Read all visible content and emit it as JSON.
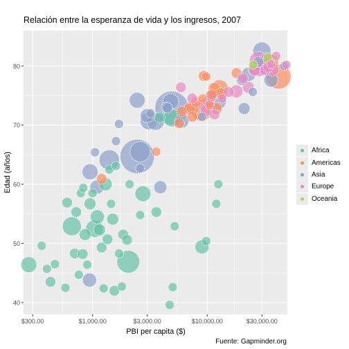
{
  "chart_data": {
    "type": "scatter",
    "title": "Relación entre la esperanza de vida y los ingresos, 2007",
    "xlabel": "PBI per capita ($)",
    "ylabel": "Edad (años)",
    "caption": "Fuente: Gapminder.org",
    "x_scale": "log10",
    "xlim": [
      250,
      50000
    ],
    "ylim": [
      38,
      86
    ],
    "x_ticks": [
      300,
      1000,
      3000,
      10000,
      30000
    ],
    "x_tick_labels": [
      "$300.00",
      "$1,000.00",
      "$3,000.00",
      "$10,000.00",
      "$30,000.00"
    ],
    "y_ticks": [
      40,
      50,
      60,
      70,
      80
    ],
    "y_tick_labels": [
      "40",
      "50",
      "60",
      "70",
      "80"
    ],
    "grid": true,
    "legend_position": "right",
    "legend": [
      {
        "name": "Africa",
        "color": "#66c2a5"
      },
      {
        "name": "Americas",
        "color": "#fc8d62"
      },
      {
        "name": "Asia",
        "color": "#8da0cb"
      },
      {
        "name": "Europe",
        "color": "#e78ac3"
      },
      {
        "name": "Oceania",
        "color": "#a6d854"
      }
    ],
    "size_variable": "population (millions)",
    "series": [
      {
        "name": "Africa",
        "color": "#66c2a5",
        "points": [
          {
            "x": 278,
            "y": 46.4,
            "size": 8
          },
          {
            "x": 360,
            "y": 49.6,
            "size": 2
          },
          {
            "x": 400,
            "y": 45.7,
            "size": 2
          },
          {
            "x": 430,
            "y": 43.5,
            "size": 3
          },
          {
            "x": 470,
            "y": 46.5,
            "size": 2
          },
          {
            "x": 580,
            "y": 42.5,
            "size": 2
          },
          {
            "x": 600,
            "y": 56.9,
            "size": 3
          },
          {
            "x": 660,
            "y": 52.9,
            "size": 12
          },
          {
            "x": 700,
            "y": 48.3,
            "size": 3
          },
          {
            "x": 720,
            "y": 55.3,
            "size": 3
          },
          {
            "x": 760,
            "y": 44.7,
            "size": 2
          },
          {
            "x": 790,
            "y": 58.5,
            "size": 2
          },
          {
            "x": 820,
            "y": 48.2,
            "size": 3
          },
          {
            "x": 830,
            "y": 59.4,
            "size": 2
          },
          {
            "x": 860,
            "y": 51.5,
            "size": 4
          },
          {
            "x": 900,
            "y": 46.4,
            "size": 2
          },
          {
            "x": 950,
            "y": 56.7,
            "size": 4
          },
          {
            "x": 1000,
            "y": 58.5,
            "size": 2
          },
          {
            "x": 1040,
            "y": 52.5,
            "size": 10
          },
          {
            "x": 1100,
            "y": 54.5,
            "size": 6
          },
          {
            "x": 1150,
            "y": 52.3,
            "size": 4
          },
          {
            "x": 1200,
            "y": 49.3,
            "size": 3
          },
          {
            "x": 1250,
            "y": 42.4,
            "size": 2
          },
          {
            "x": 1300,
            "y": 60.0,
            "size": 5
          },
          {
            "x": 1350,
            "y": 50.7,
            "size": 3
          },
          {
            "x": 1400,
            "y": 62.5,
            "size": 2
          },
          {
            "x": 1450,
            "y": 56.7,
            "size": 2
          },
          {
            "x": 1500,
            "y": 54.1,
            "size": 4
          },
          {
            "x": 1550,
            "y": 42.0,
            "size": 3
          },
          {
            "x": 1600,
            "y": 63.1,
            "size": 2
          },
          {
            "x": 1700,
            "y": 48.3,
            "size": 2
          },
          {
            "x": 1800,
            "y": 42.7,
            "size": 2
          },
          {
            "x": 1850,
            "y": 51.5,
            "size": 3
          },
          {
            "x": 2000,
            "y": 50.6,
            "size": 3
          },
          {
            "x": 2050,
            "y": 46.9,
            "size": 18
          },
          {
            "x": 2100,
            "y": 60.0,
            "size": 2
          },
          {
            "x": 2600,
            "y": 54.8,
            "size": 2
          },
          {
            "x": 2750,
            "y": 58.4,
            "size": 8
          },
          {
            "x": 3600,
            "y": 55.3,
            "size": 3
          },
          {
            "x": 3850,
            "y": 71.3,
            "size": 3
          },
          {
            "x": 4700,
            "y": 39.6,
            "size": 2
          },
          {
            "x": 4900,
            "y": 71.2,
            "size": 10
          },
          {
            "x": 5000,
            "y": 42.6,
            "size": 2
          },
          {
            "x": 5200,
            "y": 52.9,
            "size": 2
          },
          {
            "x": 9000,
            "y": 49.4,
            "size": 6
          },
          {
            "x": 9800,
            "y": 50.4,
            "size": 2
          },
          {
            "x": 12000,
            "y": 56.7,
            "size": 2
          },
          {
            "x": 12500,
            "y": 60.0,
            "size": 2
          }
        ]
      },
      {
        "name": "Americas",
        "color": "#fc8d62",
        "points": [
          {
            "x": 1200,
            "y": 60.9,
            "size": 3
          },
          {
            "x": 3600,
            "y": 65.5,
            "size": 2
          },
          {
            "x": 5700,
            "y": 70.3,
            "size": 3
          },
          {
            "x": 6000,
            "y": 72.3,
            "size": 3
          },
          {
            "x": 7000,
            "y": 72.8,
            "size": 4
          },
          {
            "x": 7400,
            "y": 71.4,
            "size": 3
          },
          {
            "x": 7500,
            "y": 72.9,
            "size": 5
          },
          {
            "x": 8000,
            "y": 73.9,
            "size": 3
          },
          {
            "x": 8900,
            "y": 72.4,
            "size": 14
          },
          {
            "x": 9100,
            "y": 74.5,
            "size": 2
          },
          {
            "x": 9300,
            "y": 78.3,
            "size": 3
          },
          {
            "x": 9800,
            "y": 78.2,
            "size": 2
          },
          {
            "x": 10500,
            "y": 73.4,
            "size": 2
          },
          {
            "x": 11000,
            "y": 75.2,
            "size": 3
          },
          {
            "x": 11500,
            "y": 76.2,
            "size": 4
          },
          {
            "x": 12000,
            "y": 72.8,
            "size": 4
          },
          {
            "x": 12800,
            "y": 76.2,
            "size": 10
          },
          {
            "x": 13200,
            "y": 75.3,
            "size": 4
          },
          {
            "x": 18000,
            "y": 78.8,
            "size": 3
          },
          {
            "x": 36000,
            "y": 80.7,
            "size": 7
          },
          {
            "x": 42000,
            "y": 78.2,
            "size": 22
          }
        ]
      },
      {
        "name": "Asia",
        "color": "#8da0cb",
        "points": [
          {
            "x": 940,
            "y": 43.8,
            "size": 6
          },
          {
            "x": 950,
            "y": 62.1,
            "size": 8
          },
          {
            "x": 1050,
            "y": 65.4,
            "size": 2
          },
          {
            "x": 1090,
            "y": 59.5,
            "size": 6
          },
          {
            "x": 1400,
            "y": 64.1,
            "size": 14
          },
          {
            "x": 1600,
            "y": 67.3,
            "size": 2
          },
          {
            "x": 1700,
            "y": 70.2,
            "size": 2
          },
          {
            "x": 2450,
            "y": 64.7,
            "size": 44
          },
          {
            "x": 2600,
            "y": 65.5,
            "size": 14
          },
          {
            "x": 2450,
            "y": 74.2,
            "size": 8
          },
          {
            "x": 2600,
            "y": 62.7,
            "size": 2
          },
          {
            "x": 3000,
            "y": 71.6,
            "size": 6
          },
          {
            "x": 3100,
            "y": 70.7,
            "size": 10
          },
          {
            "x": 3540,
            "y": 70.6,
            "size": 10
          },
          {
            "x": 3200,
            "y": 72.0,
            "size": 2
          },
          {
            "x": 3900,
            "y": 59.5,
            "size": 5
          },
          {
            "x": 4400,
            "y": 73.0,
            "size": 3
          },
          {
            "x": 4900,
            "y": 72.9,
            "size": 42
          },
          {
            "x": 4500,
            "y": 72.9,
            "size": 3
          },
          {
            "x": 4800,
            "y": 74.0,
            "size": 8
          },
          {
            "x": 6000,
            "y": 70.7,
            "size": 6
          },
          {
            "x": 12000,
            "y": 74.2,
            "size": 14
          },
          {
            "x": 9000,
            "y": 71.4,
            "size": 2
          },
          {
            "x": 21000,
            "y": 72.8,
            "size": 4
          },
          {
            "x": 23000,
            "y": 78.6,
            "size": 6
          },
          {
            "x": 25000,
            "y": 75.6,
            "size": 2
          },
          {
            "x": 28000,
            "y": 80.7,
            "size": 3
          },
          {
            "x": 30000,
            "y": 82.5,
            "size": 11
          },
          {
            "x": 36000,
            "y": 77.6,
            "size": 6
          },
          {
            "x": 47000,
            "y": 80.0,
            "size": 2
          },
          {
            "x": 30000,
            "y": 79.8,
            "size": 7
          },
          {
            "x": 20000,
            "y": 77.6,
            "size": 3
          }
        ]
      },
      {
        "name": "Europe",
        "color": "#e78ac3",
        "points": [
          {
            "x": 5900,
            "y": 76.4,
            "size": 3
          },
          {
            "x": 7400,
            "y": 74.5,
            "size": 3
          },
          {
            "x": 9250,
            "y": 73.4,
            "size": 4
          },
          {
            "x": 9800,
            "y": 72.5,
            "size": 4
          },
          {
            "x": 10300,
            "y": 74.0,
            "size": 4
          },
          {
            "x": 10800,
            "y": 74.9,
            "size": 4
          },
          {
            "x": 11600,
            "y": 71.8,
            "size": 3
          },
          {
            "x": 13500,
            "y": 74.5,
            "size": 2
          },
          {
            "x": 15400,
            "y": 75.6,
            "size": 3
          },
          {
            "x": 18000,
            "y": 75.7,
            "size": 5
          },
          {
            "x": 20500,
            "y": 77.9,
            "size": 3
          },
          {
            "x": 22800,
            "y": 76.4,
            "size": 4
          },
          {
            "x": 25500,
            "y": 79.4,
            "size": 4
          },
          {
            "x": 28500,
            "y": 79.4,
            "size": 6
          },
          {
            "x": 28000,
            "y": 80.9,
            "size": 11
          },
          {
            "x": 30500,
            "y": 80.2,
            "size": 7
          },
          {
            "x": 32000,
            "y": 79.3,
            "size": 3
          },
          {
            "x": 33000,
            "y": 81.0,
            "size": 6
          },
          {
            "x": 34000,
            "y": 79.8,
            "size": 3
          },
          {
            "x": 36000,
            "y": 80.3,
            "size": 2
          },
          {
            "x": 37000,
            "y": 79.4,
            "size": 5
          },
          {
            "x": 40000,
            "y": 81.7,
            "size": 2
          },
          {
            "x": 49000,
            "y": 80.2,
            "size": 2
          },
          {
            "x": 33500,
            "y": 80.5,
            "size": 4
          },
          {
            "x": 26000,
            "y": 79.3,
            "size": 4
          }
        ]
      },
      {
        "name": "Oceania",
        "color": "#a6d854",
        "points": [
          {
            "x": 25200,
            "y": 80.2,
            "size": 2
          },
          {
            "x": 34400,
            "y": 81.2,
            "size": 4
          }
        ]
      }
    ]
  }
}
